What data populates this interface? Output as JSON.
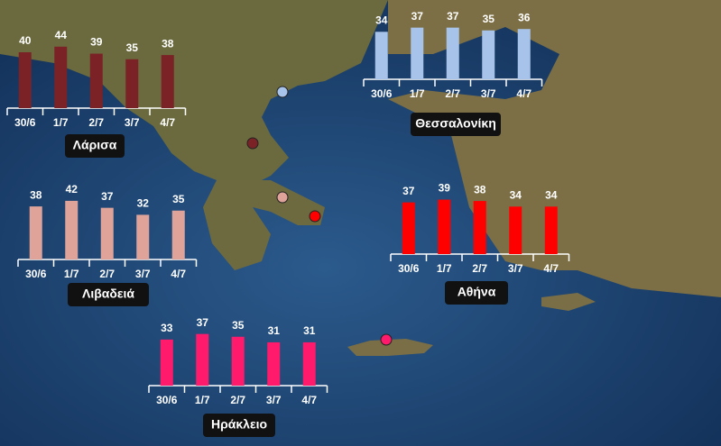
{
  "chart_data": [
    {
      "type": "bar",
      "title": "Λάρισα",
      "categories": [
        "30/6",
        "1/7",
        "2/7",
        "3/7",
        "4/7"
      ],
      "values": [
        40,
        44,
        39,
        35,
        38
      ],
      "color": "#7a2226"
    },
    {
      "type": "bar",
      "title": "Θεσσαλονίκη",
      "categories": [
        "30/6",
        "1/7",
        "2/7",
        "3/7",
        "4/7"
      ],
      "values": [
        34,
        37,
        37,
        35,
        36
      ],
      "color": "#a7c3e9"
    },
    {
      "type": "bar",
      "title": "Λιβαδειά",
      "categories": [
        "30/6",
        "1/7",
        "2/7",
        "3/7",
        "4/7"
      ],
      "values": [
        38,
        42,
        37,
        32,
        35
      ],
      "color": "#e0a39a"
    },
    {
      "type": "bar",
      "title": "Αθήνα",
      "categories": [
        "30/6",
        "1/7",
        "2/7",
        "3/7",
        "4/7"
      ],
      "values": [
        37,
        39,
        38,
        34,
        34
      ],
      "color": "#ff0000"
    },
    {
      "type": "bar",
      "title": "Ηράκλειο",
      "categories": [
        "30/6",
        "1/7",
        "2/7",
        "3/7",
        "4/7"
      ],
      "values": [
        33,
        37,
        35,
        31,
        31
      ],
      "color": "#ff1a6b"
    }
  ]
}
